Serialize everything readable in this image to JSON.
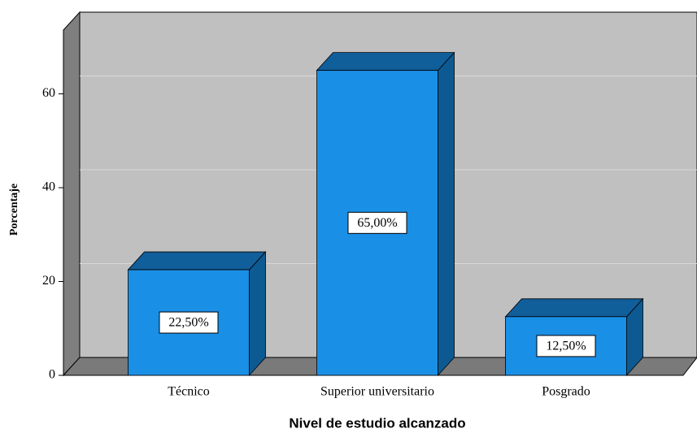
{
  "chart_data": {
    "type": "bar3d",
    "x_label": "Nivel de estudio alcanzado",
    "y_label": "Porcentaje",
    "categories": [
      "Técnico",
      "Superior universitario",
      "Posgrado"
    ],
    "values": [
      22.5,
      65,
      12.5
    ],
    "value_labels": [
      "22,50%",
      "65,00%",
      "12,50%"
    ],
    "color": "#1a8fe6",
    "ylim": [
      0,
      73.6
    ],
    "yticks": [
      0,
      20,
      40,
      60
    ],
    "grid": true
  }
}
